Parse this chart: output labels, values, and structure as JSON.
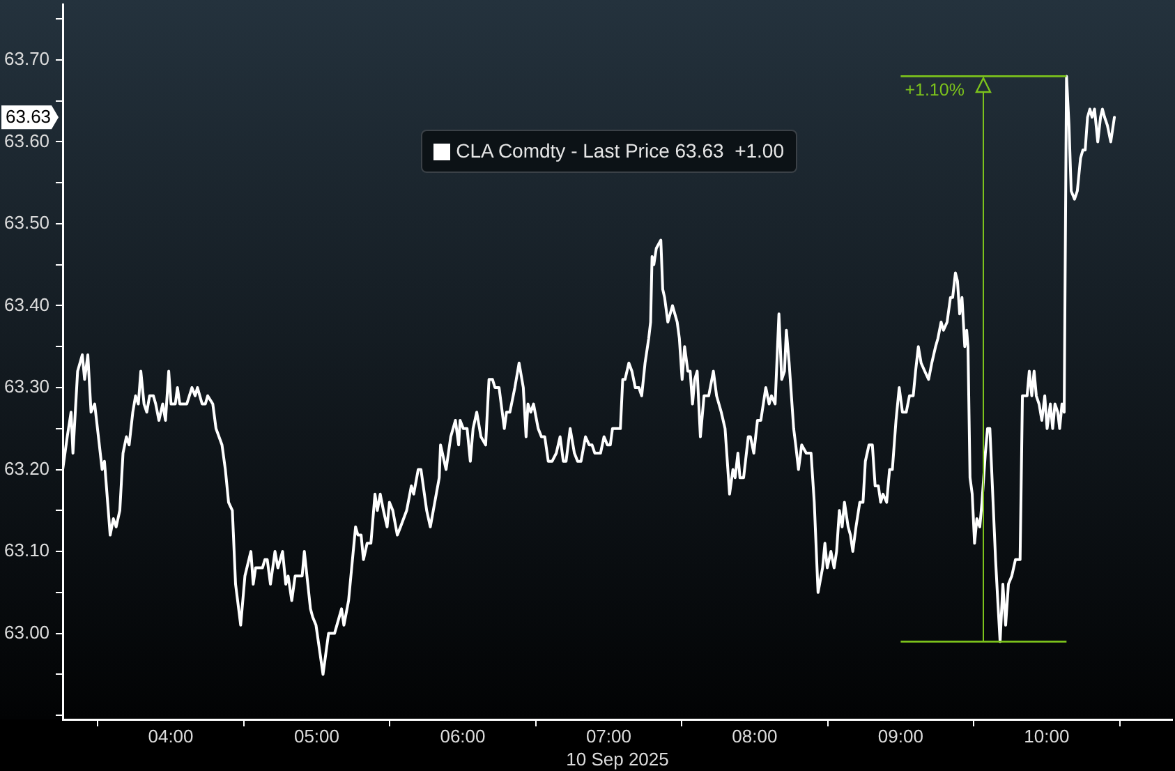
{
  "chart_data": {
    "type": "line",
    "xlabel": "10 Sep 2025",
    "x": [
      3.26,
      3.291,
      3.317,
      3.33,
      3.362,
      3.394,
      3.41,
      3.432,
      3.454,
      3.479,
      3.53,
      3.546,
      3.585,
      3.607,
      3.626,
      3.651,
      3.673,
      3.696,
      3.715,
      3.74,
      3.759,
      3.778,
      3.795,
      3.817,
      3.836,
      3.855,
      3.881,
      3.897,
      3.919,
      3.945,
      3.964,
      3.986,
      4.002,
      4.031,
      4.046,
      4.062,
      4.11,
      4.145,
      4.167,
      4.183,
      4.215,
      4.237,
      4.253,
      4.288,
      4.31,
      4.351,
      4.374,
      4.396,
      4.422,
      4.444,
      4.479,
      4.508,
      4.549,
      4.565,
      4.581,
      4.628,
      4.645,
      4.661,
      4.683,
      4.714,
      4.734,
      4.766,
      4.788,
      4.804,
      4.829,
      4.852,
      4.9,
      4.915,
      4.957,
      4.972,
      4.995,
      5.043,
      5.081,
      5.122,
      5.17,
      5.186,
      5.218,
      5.266,
      5.282,
      5.304,
      5.32,
      5.345,
      5.371,
      5.399,
      5.415,
      5.435,
      5.457,
      5.482,
      5.498,
      5.521,
      5.552,
      5.574,
      5.616,
      5.648,
      5.664,
      5.695,
      5.714,
      5.753,
      5.778,
      5.839,
      5.848,
      5.886,
      5.918,
      5.95,
      5.972,
      5.982,
      6.004,
      6.03,
      6.052,
      6.071,
      6.096,
      6.125,
      6.157,
      6.18,
      6.204,
      6.221,
      6.249,
      6.285,
      6.3,
      6.323,
      6.357,
      6.386,
      6.415,
      6.434,
      6.447,
      6.466,
      6.485,
      6.517,
      6.539,
      6.562,
      6.586,
      6.612,
      6.641,
      6.667,
      6.689,
      6.708,
      6.736,
      6.765,
      6.787,
      6.81,
      6.841,
      6.867,
      6.886,
      6.905,
      6.944,
      6.968,
      6.991,
      7.011,
      7.026,
      7.049,
      7.08,
      7.096,
      7.112,
      7.138,
      7.159,
      7.182,
      7.207,
      7.226,
      7.249,
      7.274,
      7.287,
      7.297,
      7.309,
      7.326,
      7.357,
      7.37,
      7.383,
      7.405,
      7.421,
      7.437,
      7.469,
      7.484,
      7.503,
      7.52,
      7.542,
      7.558,
      7.574,
      7.589,
      7.606,
      7.628,
      7.653,
      7.685,
      7.717,
      7.739,
      7.771,
      7.797,
      7.828,
      7.851,
      7.866,
      7.885,
      7.899,
      7.924,
      7.956,
      7.971,
      7.994,
      8.019,
      8.042,
      8.076,
      8.099,
      8.115,
      8.14,
      8.166,
      8.185,
      8.204,
      8.217,
      8.236,
      8.267,
      8.281,
      8.3,
      8.322,
      8.353,
      8.386,
      8.408,
      8.434,
      8.465,
      8.481,
      8.497,
      8.522,
      8.544,
      8.561,
      8.58,
      8.599,
      8.615,
      8.64,
      8.656,
      8.672,
      8.694,
      8.72,
      8.742,
      8.758,
      8.783,
      8.806,
      8.825,
      8.847,
      8.863,
      8.879,
      8.904,
      8.924,
      8.943,
      8.968,
      8.99,
      9.012,
      9.038,
      9.06,
      9.086,
      9.102,
      9.121,
      9.14,
      9.165,
      9.191,
      9.213,
      9.239,
      9.255,
      9.277,
      9.293,
      9.318,
      9.341,
      9.356,
      9.375,
      9.389,
      9.404,
      9.42,
      9.439,
      9.452,
      9.461,
      9.475,
      9.49,
      9.506,
      9.522,
      9.542,
      9.557,
      9.58,
      9.595,
      9.611,
      9.628,
      9.65,
      9.662,
      9.681,
      9.7,
      9.719,
      9.738,
      9.761,
      9.786,
      9.802,
      9.818,
      9.834,
      9.85,
      9.866,
      9.881,
      9.898,
      9.914,
      9.929,
      9.948,
      9.967,
      9.987,
      10.003,
      10.025,
      10.041,
      10.057,
      10.076,
      10.089,
      10.105,
      10.12,
      10.136,
      10.153,
      10.168,
      10.191,
      10.21,
      10.232,
      10.248,
      10.264,
      10.28,
      10.296,
      10.311,
      10.328,
      10.35,
      10.369,
      10.382,
      10.397,
      10.416,
      10.439,
      10.464
    ],
    "series": [
      {
        "name": "CLA Comdty - Last Price 63.63  +1.00",
        "color": "#ffffff",
        "values": [
          63.2,
          63.24,
          63.27,
          63.22,
          63.32,
          63.34,
          63.31,
          63.34,
          63.27,
          63.28,
          63.2,
          63.21,
          63.12,
          63.14,
          63.13,
          63.15,
          63.22,
          63.24,
          63.23,
          63.27,
          63.29,
          63.28,
          63.32,
          63.28,
          63.27,
          63.29,
          63.29,
          63.28,
          63.26,
          63.28,
          63.26,
          63.32,
          63.28,
          63.28,
          63.3,
          63.28,
          63.28,
          63.3,
          63.29,
          63.3,
          63.28,
          63.28,
          63.29,
          63.28,
          63.25,
          63.23,
          63.2,
          63.16,
          63.15,
          63.06,
          63.01,
          63.07,
          63.1,
          63.06,
          63.08,
          63.08,
          63.09,
          63.09,
          63.06,
          63.1,
          63.08,
          63.1,
          63.06,
          63.07,
          63.04,
          63.07,
          63.07,
          63.1,
          63.03,
          63.02,
          63.01,
          62.95,
          63.0,
          63.0,
          63.03,
          63.01,
          63.04,
          63.13,
          63.12,
          63.12,
          63.09,
          63.11,
          63.11,
          63.17,
          63.15,
          63.17,
          63.15,
          63.13,
          63.16,
          63.15,
          63.12,
          63.13,
          63.15,
          63.18,
          63.17,
          63.2,
          63.2,
          63.15,
          63.13,
          63.19,
          63.23,
          63.2,
          63.24,
          63.26,
          63.23,
          63.26,
          63.25,
          63.25,
          63.21,
          63.25,
          63.27,
          63.24,
          63.23,
          63.31,
          63.31,
          63.3,
          63.3,
          63.25,
          63.27,
          63.27,
          63.3,
          63.33,
          63.3,
          63.24,
          63.28,
          63.27,
          63.28,
          63.25,
          63.24,
          63.24,
          63.21,
          63.21,
          63.22,
          63.24,
          63.21,
          63.21,
          63.25,
          63.22,
          63.21,
          63.21,
          63.24,
          63.23,
          63.23,
          63.22,
          63.22,
          63.24,
          63.23,
          63.23,
          63.25,
          63.25,
          63.25,
          63.31,
          63.31,
          63.33,
          63.32,
          63.3,
          63.3,
          63.29,
          63.33,
          63.36,
          63.38,
          63.46,
          63.45,
          63.47,
          63.48,
          63.42,
          63.41,
          63.38,
          63.39,
          63.4,
          63.38,
          63.36,
          63.31,
          63.35,
          63.32,
          63.32,
          63.28,
          63.31,
          63.32,
          63.24,
          63.29,
          63.29,
          63.32,
          63.29,
          63.27,
          63.25,
          63.17,
          63.2,
          63.19,
          63.22,
          63.19,
          63.19,
          63.24,
          63.24,
          63.22,
          63.26,
          63.26,
          63.3,
          63.28,
          63.29,
          63.28,
          63.39,
          63.31,
          63.32,
          63.37,
          63.33,
          63.25,
          63.23,
          63.2,
          63.23,
          63.22,
          63.22,
          63.16,
          63.05,
          63.08,
          63.11,
          63.08,
          63.1,
          63.08,
          63.1,
          63.15,
          63.13,
          63.16,
          63.13,
          63.12,
          63.1,
          63.13,
          63.16,
          63.16,
          63.21,
          63.23,
          63.23,
          63.18,
          63.18,
          63.16,
          63.17,
          63.16,
          63.2,
          63.2,
          63.26,
          63.3,
          63.27,
          63.27,
          63.29,
          63.29,
          63.32,
          63.35,
          63.33,
          63.32,
          63.31,
          63.33,
          63.35,
          63.36,
          63.38,
          63.37,
          63.38,
          63.41,
          63.41,
          63.44,
          63.43,
          63.39,
          63.41,
          63.35,
          63.37,
          63.35,
          63.19,
          63.17,
          63.11,
          63.14,
          63.13,
          63.16,
          63.22,
          63.25,
          63.25,
          63.18,
          63.09,
          63.05,
          62.99,
          63.06,
          63.01,
          63.06,
          63.07,
          63.09,
          63.09,
          63.09,
          63.29,
          63.29,
          63.29,
          63.32,
          63.29,
          63.32,
          63.29,
          63.28,
          63.26,
          63.29,
          63.25,
          63.28,
          63.25,
          63.28,
          63.27,
          63.25,
          63.28,
          63.27,
          63.68,
          63.62,
          63.54,
          63.53,
          63.54,
          63.58,
          63.59,
          63.59,
          63.63,
          63.64,
          63.63,
          63.64,
          63.6,
          63.63,
          63.64,
          63.63,
          63.62,
          63.6,
          63.63
        ]
      }
    ],
    "xlim": [
      3.26,
      10.86
    ],
    "ylim": [
      62.895,
      63.768
    ],
    "xticks": [
      {
        "value": 3.5,
        "label": null
      },
      {
        "value": 4,
        "label": "04:00"
      },
      {
        "value": 4.5,
        "label": null
      },
      {
        "value": 5,
        "label": "05:00"
      },
      {
        "value": 5.5,
        "label": null
      },
      {
        "value": 6,
        "label": "06:00"
      },
      {
        "value": 6.5,
        "label": null
      },
      {
        "value": 7,
        "label": "07:00"
      },
      {
        "value": 7.5,
        "label": null
      },
      {
        "value": 8,
        "label": "08:00"
      },
      {
        "value": 8.5,
        "label": null
      },
      {
        "value": 9,
        "label": "09:00"
      },
      {
        "value": 9.5,
        "label": null
      },
      {
        "value": 10,
        "label": "10:00"
      },
      {
        "value": 10.5,
        "label": null
      }
    ],
    "yticks": [
      {
        "value": 62.9,
        "label": null
      },
      {
        "value": 62.95,
        "label": null
      },
      {
        "value": 63,
        "label": "63.00"
      },
      {
        "value": 63.05,
        "label": null
      },
      {
        "value": 63.1,
        "label": "63.10"
      },
      {
        "value": 63.15,
        "label": null
      },
      {
        "value": 63.2,
        "label": "63.20"
      },
      {
        "value": 63.25,
        "label": null
      },
      {
        "value": 63.3,
        "label": "63.30"
      },
      {
        "value": 63.35,
        "label": null
      },
      {
        "value": 63.4,
        "label": "63.40"
      },
      {
        "value": 63.45,
        "label": null
      },
      {
        "value": 63.5,
        "label": "63.50"
      },
      {
        "value": 63.55,
        "label": null
      },
      {
        "value": 63.6,
        "label": "63.60"
      },
      {
        "value": 63.65,
        "label": null
      },
      {
        "value": 63.7,
        "label": "63.70"
      },
      {
        "value": 63.75,
        "label": null
      }
    ],
    "ref_lines": [
      {
        "axis": "y",
        "value": 63.68,
        "color": "#7cc21c"
      },
      {
        "axis": "y",
        "value": 62.99,
        "color": "#7cc21c"
      }
    ],
    "annotations": [
      {
        "text": "+1.10%",
        "x": 9.0,
        "y": 63.68
      },
      {
        "text": "63.63",
        "y": 63.63
      }
    ],
    "legend": "top"
  }
}
